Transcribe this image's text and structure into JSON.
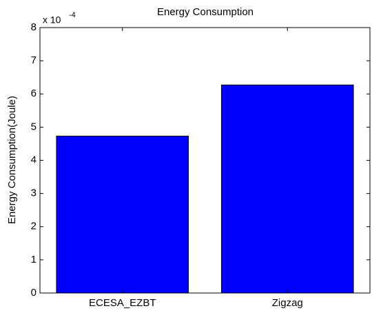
{
  "chart_data": {
    "type": "bar",
    "title": "Energy Consumption",
    "ylabel": "Energy Consumption(Joule)",
    "axis_multiplier": {
      "base": "x 10",
      "exponent": "-4"
    },
    "categories": [
      "ECESA_EZBT",
      "Zigzag"
    ],
    "values": [
      4.73,
      6.27
    ],
    "color": "#0000ff",
    "ylim": [
      0,
      8
    ],
    "yticks": [
      0,
      1,
      2,
      3,
      4,
      5,
      6,
      7,
      8
    ],
    "grid": false
  }
}
